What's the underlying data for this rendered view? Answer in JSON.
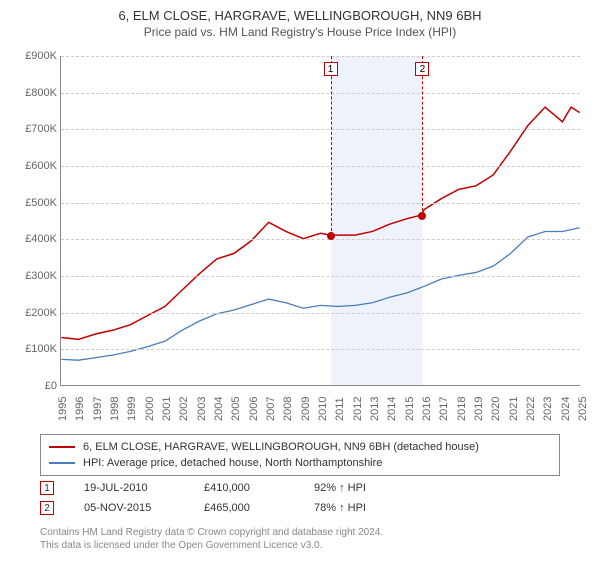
{
  "title_line1": "6, ELM CLOSE, HARGRAVE, WELLINGBOROUGH, NN9 6BH",
  "title_line2": "Price paid vs. HM Land Registry's House Price Index (HPI)",
  "chart": {
    "type": "line",
    "background_color": "#ffffff",
    "grid_color": "#cccccc",
    "shaded_band": {
      "x_from": 2010.55,
      "x_to": 2015.85,
      "fill": "#eef3fb"
    },
    "xlim": [
      1995,
      2025
    ],
    "ylim": [
      0,
      900000
    ],
    "ytick_step": 100000,
    "x_ticks": [
      1995,
      1996,
      1997,
      1998,
      1999,
      2000,
      2001,
      2002,
      2003,
      2004,
      2005,
      2006,
      2007,
      2008,
      2009,
      2010,
      2011,
      2012,
      2013,
      2014,
      2015,
      2016,
      2017,
      2018,
      2019,
      2020,
      2021,
      2022,
      2023,
      2024,
      2025
    ],
    "y_tick_labels": [
      "£0",
      "£100K",
      "£200K",
      "£300K",
      "£400K",
      "£500K",
      "£600K",
      "£700K",
      "£800K",
      "£900K"
    ],
    "series": [
      {
        "name": "property",
        "label": "6, ELM CLOSE, HARGRAVE, WELLINGBOROUGH, NN9 6BH (detached house)",
        "color": "#c00000",
        "line_width": 1.5,
        "points": [
          [
            1995,
            130000
          ],
          [
            1996,
            125000
          ],
          [
            1997,
            140000
          ],
          [
            1998,
            150000
          ],
          [
            1999,
            165000
          ],
          [
            2000,
            190000
          ],
          [
            2001,
            215000
          ],
          [
            2002,
            260000
          ],
          [
            2003,
            305000
          ],
          [
            2004,
            345000
          ],
          [
            2005,
            360000
          ],
          [
            2006,
            395000
          ],
          [
            2007,
            445000
          ],
          [
            2008,
            420000
          ],
          [
            2009,
            400000
          ],
          [
            2010,
            415000
          ],
          [
            2010.55,
            410000
          ],
          [
            2011,
            410000
          ],
          [
            2012,
            410000
          ],
          [
            2013,
            420000
          ],
          [
            2014,
            440000
          ],
          [
            2015,
            455000
          ],
          [
            2015.85,
            465000
          ],
          [
            2016,
            480000
          ],
          [
            2017,
            510000
          ],
          [
            2018,
            535000
          ],
          [
            2019,
            545000
          ],
          [
            2020,
            575000
          ],
          [
            2021,
            640000
          ],
          [
            2022,
            710000
          ],
          [
            2023,
            760000
          ],
          [
            2024,
            720000
          ],
          [
            2024.5,
            760000
          ],
          [
            2025,
            745000
          ]
        ]
      },
      {
        "name": "hpi",
        "label": "HPI: Average price, detached house, North Northamptonshire",
        "color": "#4a7ebb",
        "line_width": 1.3,
        "points": [
          [
            1995,
            70000
          ],
          [
            1996,
            68000
          ],
          [
            1997,
            75000
          ],
          [
            1998,
            82000
          ],
          [
            1999,
            92000
          ],
          [
            2000,
            105000
          ],
          [
            2001,
            120000
          ],
          [
            2002,
            150000
          ],
          [
            2003,
            175000
          ],
          [
            2004,
            195000
          ],
          [
            2005,
            205000
          ],
          [
            2006,
            220000
          ],
          [
            2007,
            235000
          ],
          [
            2008,
            225000
          ],
          [
            2009,
            210000
          ],
          [
            2010,
            218000
          ],
          [
            2011,
            215000
          ],
          [
            2012,
            218000
          ],
          [
            2013,
            225000
          ],
          [
            2014,
            240000
          ],
          [
            2015,
            252000
          ],
          [
            2016,
            270000
          ],
          [
            2017,
            290000
          ],
          [
            2018,
            300000
          ],
          [
            2019,
            308000
          ],
          [
            2020,
            325000
          ],
          [
            2021,
            360000
          ],
          [
            2022,
            405000
          ],
          [
            2023,
            420000
          ],
          [
            2024,
            420000
          ],
          [
            2025,
            430000
          ]
        ]
      }
    ],
    "sale_markers": [
      {
        "n": "1",
        "x": 2010.55,
        "y": 410000,
        "dot_color": "#c00000"
      },
      {
        "n": "2",
        "x": 2015.85,
        "y": 465000,
        "dot_color": "#c00000"
      }
    ]
  },
  "legend": [
    {
      "color": "#c00000",
      "label": "6, ELM CLOSE, HARGRAVE, WELLINGBOROUGH, NN9 6BH (detached house)"
    },
    {
      "color": "#4a7ebb",
      "label": "HPI: Average price, detached house, North Northamptonshire"
    }
  ],
  "sales": [
    {
      "n": "1",
      "date": "19-JUL-2010",
      "price": "£410,000",
      "pct": "92% ↑ HPI"
    },
    {
      "n": "2",
      "date": "05-NOV-2015",
      "price": "£465,000",
      "pct": "78% ↑ HPI"
    }
  ],
  "footer_line1": "Contains HM Land Registry data © Crown copyright and database right 2024.",
  "footer_line2": "This data is licensed under the Open Government Licence v3.0."
}
